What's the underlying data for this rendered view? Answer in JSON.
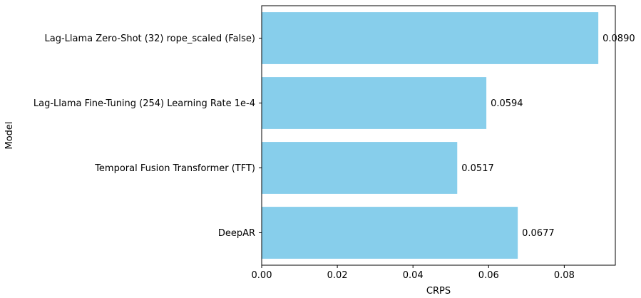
{
  "chart_data": {
    "type": "bar",
    "orientation": "horizontal",
    "categories": [
      "Lag-Llama Zero-Shot (32) rope_scaled (False)",
      "Lag-Llama Fine-Tuning (254) Learning Rate 1e-4",
      "Temporal Fusion Transformer (TFT)",
      "DeepAR"
    ],
    "values": [
      0.089,
      0.0594,
      0.0517,
      0.0677
    ],
    "data_labels": [
      "0.0890",
      "0.0594",
      "0.0517",
      "0.0677"
    ],
    "xlabel": "CRPS",
    "ylabel": "Model",
    "xlim": [
      0,
      0.0935
    ],
    "xticks": [
      0.0,
      0.02,
      0.04,
      0.06,
      0.08
    ],
    "xtick_labels": [
      "0.00",
      "0.02",
      "0.04",
      "0.06",
      "0.08"
    ],
    "grid": false,
    "legend": "none",
    "bar_color": "#87ceeb"
  }
}
